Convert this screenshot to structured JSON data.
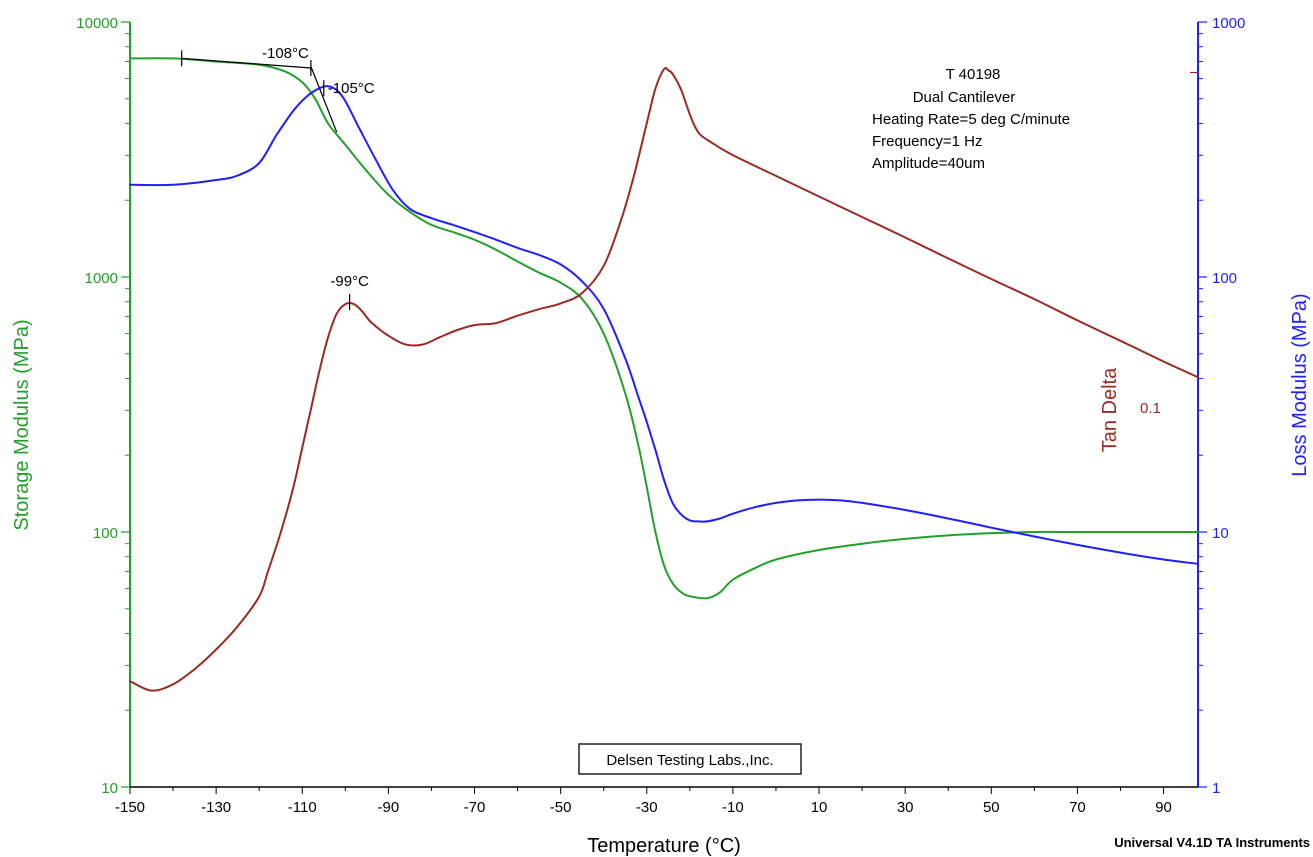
{
  "chart_data": {
    "type": "line",
    "x_axis": {
      "label": "Temperature (°C)",
      "range": [
        -150,
        98
      ],
      "ticks": [
        -150,
        -130,
        -110,
        -90,
        -70,
        -50,
        -30,
        -10,
        10,
        30,
        50,
        70,
        90
      ]
    },
    "y_left": {
      "label": "Storage Modulus (MPa)",
      "scale": "log",
      "range": [
        10,
        10000
      ],
      "ticks": [
        10,
        100,
        1000,
        10000
      ],
      "color": "#22a02a"
    },
    "y_right": {
      "label": "Loss Modulus (MPa)",
      "scale": "log",
      "range": [
        1,
        1000
      ],
      "ticks": [
        1,
        10,
        100,
        1000
      ],
      "color": "#1f1fff"
    },
    "series": [
      {
        "name": "Storage Modulus",
        "axis": "left",
        "color": "#22a02a",
        "x": [
          -150,
          -140,
          -130,
          -120,
          -114,
          -110,
          -107,
          -104,
          -100,
          -95,
          -90,
          -85,
          -80,
          -75,
          -70,
          -65,
          -60,
          -55,
          -50,
          -45,
          -40,
          -35,
          -32,
          -30,
          -28,
          -26,
          -24,
          -22,
          -20,
          -16,
          -13,
          -10,
          -5,
          0,
          10,
          20,
          30,
          40,
          50,
          60,
          70,
          80,
          90,
          98
        ],
        "y": [
          7200,
          7200,
          7000,
          6800,
          6400,
          5800,
          5000,
          4000,
          3300,
          2600,
          2100,
          1800,
          1600,
          1500,
          1400,
          1280,
          1150,
          1040,
          950,
          820,
          600,
          350,
          220,
          150,
          100,
          74,
          63,
          58,
          56,
          55,
          58,
          65,
          72,
          78,
          85,
          90,
          94,
          97,
          99,
          100,
          100,
          100,
          100,
          100
        ]
      },
      {
        "name": "Loss Modulus",
        "axis": "right",
        "color": "#1f1fff",
        "x": [
          -150,
          -140,
          -130,
          -125,
          -120,
          -116,
          -112,
          -109,
          -106,
          -104,
          -102,
          -100,
          -97,
          -93,
          -89,
          -85,
          -80,
          -75,
          -70,
          -65,
          -60,
          -55,
          -50,
          -45,
          -40,
          -35,
          -32,
          -30,
          -28,
          -26,
          -24,
          -22,
          -20,
          -18,
          -16,
          -13,
          -10,
          -5,
          0,
          5,
          10,
          15,
          20,
          30,
          40,
          50,
          60,
          70,
          80,
          90,
          98
        ],
        "y": [
          230,
          230,
          240,
          250,
          280,
          360,
          450,
          510,
          550,
          560,
          540,
          490,
          390,
          290,
          220,
          185,
          170,
          160,
          150,
          140,
          130,
          122,
          112,
          96,
          75,
          48,
          34,
          27,
          21,
          16,
          13,
          11.7,
          11.1,
          11,
          11,
          11.3,
          11.8,
          12.5,
          13,
          13.3,
          13.4,
          13.3,
          13,
          12.2,
          11.3,
          10.4,
          9.6,
          8.9,
          8.3,
          7.8,
          7.5
        ]
      },
      {
        "name": "Tan Delta",
        "axis": "tan",
        "color": "#9b2a24",
        "x": [
          -150,
          -145,
          -140,
          -135,
          -130,
          -125,
          -120,
          -118,
          -115,
          -112,
          -110,
          -108,
          -106,
          -104,
          -102,
          -100,
          -98,
          -96,
          -94,
          -90,
          -86,
          -82,
          -78,
          -74,
          -70,
          -65,
          -60,
          -55,
          -50,
          -45,
          -40,
          -36,
          -33,
          -30,
          -28,
          -26,
          -25,
          -24,
          -22,
          -20,
          -18,
          -15,
          -10,
          0,
          10,
          20,
          30,
          40,
          50,
          60,
          70,
          80,
          90,
          98
        ],
        "y": [
          0.0077,
          0.0074,
          0.0076,
          0.0081,
          0.0088,
          0.0097,
          0.011,
          0.0122,
          0.0144,
          0.0175,
          0.0206,
          0.0242,
          0.0285,
          0.0328,
          0.0362,
          0.0377,
          0.0377,
          0.0365,
          0.0349,
          0.033,
          0.0318,
          0.0318,
          0.0328,
          0.0338,
          0.0345,
          0.0348,
          0.0359,
          0.0369,
          0.0378,
          0.0395,
          0.0443,
          0.0536,
          0.0647,
          0.0808,
          0.0934,
          0.1014,
          0.1009,
          0.0994,
          0.0929,
          0.0838,
          0.0776,
          0.0745,
          0.0706,
          0.0647,
          0.0593,
          0.0544,
          0.0499,
          0.0457,
          0.0419,
          0.0385,
          0.0352,
          0.0323,
          0.0296,
          0.0277
        ]
      }
    ],
    "tan_axis": {
      "scale": "log",
      "range": [
        0.00493,
        0.1237
      ],
      "tick_value": 0.1,
      "tick_label": "0.1",
      "label": "Tan Delta"
    },
    "annotations": [
      {
        "text": "-108°C",
        "x": -108
      },
      {
        "text": "-105°C",
        "x": -105
      },
      {
        "text": "-99°C",
        "x": -99
      }
    ],
    "info_box": [
      "T 40198",
      "Dual Cantilever",
      "Heating Rate=5 deg C/minute",
      "Frequency=1 Hz",
      "Amplitude=40um"
    ],
    "watermark": "Delsen Testing Labs.,Inc.",
    "footer": "Universal V4.1D TA Instruments",
    "grid": false,
    "legend": "none"
  }
}
